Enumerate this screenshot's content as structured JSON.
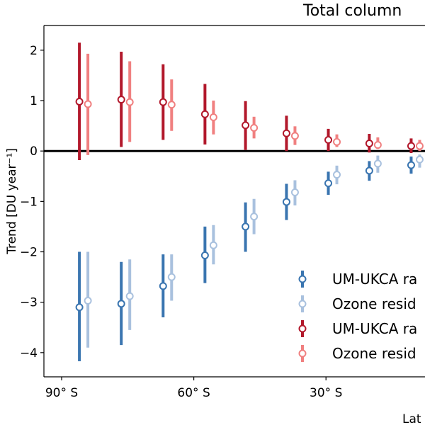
{
  "chart_data": {
    "type": "scatter",
    "title": "Total column",
    "xlabel": "Lat",
    "ylabel": "Trend  [DU year⁻¹]",
    "xlim": [
      -94,
      0
    ],
    "ylim": [
      -4.48,
      2.49
    ],
    "x_ticks": [
      {
        "value": -90,
        "label": "90° S"
      },
      {
        "value": -60,
        "label": "60° S"
      },
      {
        "value": -30,
        "label": "30° S"
      }
    ],
    "y_ticks": [
      {
        "value": 2,
        "label": "2"
      },
      {
        "value": 1,
        "label": "1"
      },
      {
        "value": 0,
        "label": "0"
      },
      {
        "value": -1,
        "label": "−1"
      },
      {
        "value": -2,
        "label": "−2"
      },
      {
        "value": -3,
        "label": "−3"
      },
      {
        "value": -4,
        "label": "−4"
      }
    ],
    "zero_line": true,
    "grid": false,
    "legend_position": "bottom-right",
    "latitudes": [
      -85,
      -75.5,
      -66,
      -56.5,
      -47.3,
      -38,
      -28.5,
      -19.2,
      -9.7
    ],
    "series": [
      {
        "name": "UM-UKCA ra",
        "color": "#3a75b0",
        "offset": -1,
        "values": [
          -3.1,
          -3.03,
          -2.68,
          -2.07,
          -1.5,
          -1.01,
          -0.64,
          -0.39,
          -0.28
        ],
        "lower": [
          -4.17,
          -3.85,
          -3.3,
          -2.62,
          -2.0,
          -1.37,
          -0.87,
          -0.59,
          -0.45
        ],
        "upper": [
          -2.0,
          -2.2,
          -2.05,
          -1.5,
          -1.02,
          -0.65,
          -0.41,
          -0.2,
          -0.11
        ]
      },
      {
        "name": "Ozone resid",
        "color": "#a9c1de",
        "offset": 1,
        "values": [
          -2.97,
          -2.88,
          -2.5,
          -1.87,
          -1.3,
          -0.82,
          -0.47,
          -0.25,
          -0.17
        ],
        "lower": [
          -3.9,
          -3.55,
          -2.97,
          -2.25,
          -1.65,
          -1.08,
          -0.66,
          -0.43,
          -0.33
        ],
        "upper": [
          -2.0,
          -2.15,
          -2.05,
          -1.47,
          -0.95,
          -0.58,
          -0.29,
          -0.09,
          -0.07
        ]
      },
      {
        "name": "UM-UKCA ra",
        "color": "#b2182b",
        "offset": -1,
        "values": [
          0.98,
          1.02,
          0.97,
          0.73,
          0.51,
          0.35,
          0.22,
          0.15,
          0.1
        ],
        "lower": [
          -0.18,
          0.08,
          0.22,
          0.13,
          0.02,
          0.0,
          0.0,
          -0.03,
          -0.04
        ],
        "upper": [
          2.15,
          1.97,
          1.72,
          1.33,
          0.99,
          0.7,
          0.44,
          0.34,
          0.25
        ]
      },
      {
        "name": "Ozone resid",
        "color": "#f08080",
        "offset": 1,
        "values": [
          0.93,
          0.97,
          0.92,
          0.67,
          0.46,
          0.3,
          0.18,
          0.12,
          0.1
        ],
        "lower": [
          -0.08,
          0.18,
          0.4,
          0.33,
          0.25,
          0.12,
          0.08,
          0.04,
          0.0
        ],
        "upper": [
          1.93,
          1.78,
          1.42,
          1.0,
          0.68,
          0.49,
          0.33,
          0.27,
          0.22
        ]
      }
    ]
  }
}
